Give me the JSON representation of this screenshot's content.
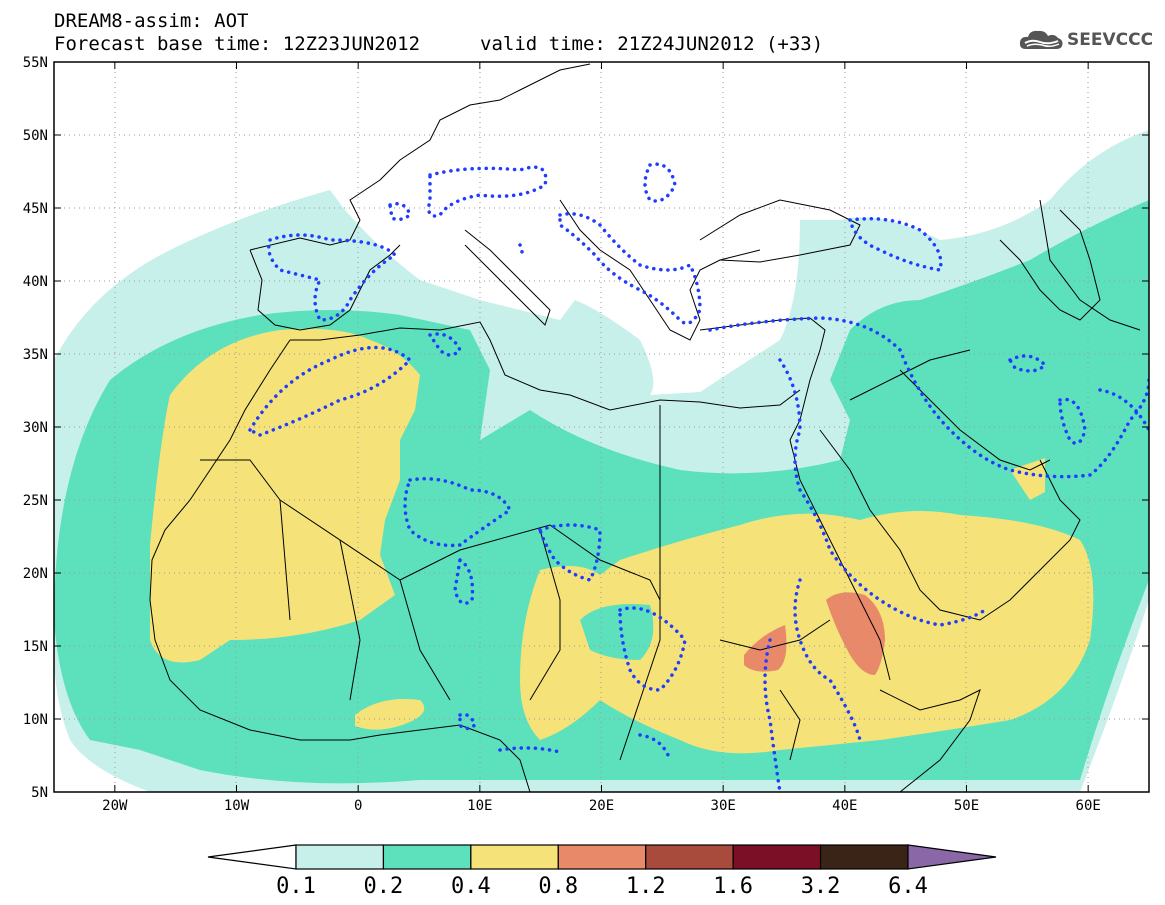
{
  "header": {
    "line1": "DREAM8-assim: AOT",
    "line2": "Forecast base time: 12Z23JUN2012",
    "valid": "valid time: 21Z24JUN2012 (+33)",
    "logo_text": "SEEVCCC"
  },
  "map": {
    "lon_range": [
      -25,
      65
    ],
    "lat_range": [
      5,
      55
    ],
    "lon_ticks": [
      {
        "value": -20,
        "label": "20W"
      },
      {
        "value": -10,
        "label": "10W"
      },
      {
        "value": 0,
        "label": "0"
      },
      {
        "value": 10,
        "label": "10E"
      },
      {
        "value": 20,
        "label": "20E"
      },
      {
        "value": 30,
        "label": "30E"
      },
      {
        "value": 40,
        "label": "40E"
      },
      {
        "value": 50,
        "label": "50E"
      },
      {
        "value": 60,
        "label": "60E"
      }
    ],
    "lat_ticks": [
      {
        "value": 55,
        "label": "55N"
      },
      {
        "value": 50,
        "label": "50N"
      },
      {
        "value": 45,
        "label": "45N"
      },
      {
        "value": 40,
        "label": "40N"
      },
      {
        "value": 35,
        "label": "35N"
      },
      {
        "value": 30,
        "label": "30N"
      },
      {
        "value": 25,
        "label": "25N"
      },
      {
        "value": 20,
        "label": "20N"
      },
      {
        "value": 15,
        "label": "15N"
      },
      {
        "value": 10,
        "label": "10N"
      },
      {
        "value": 5,
        "label": "5N"
      }
    ],
    "grid": "dotted"
  },
  "colorbar": {
    "boundaries": [
      "0.1",
      "0.2",
      "0.4",
      "0.8",
      "1.2",
      "1.6",
      "3.2",
      "6.4"
    ],
    "colors": [
      "#c8f0ea",
      "#5de0bc",
      "#f5e37a",
      "#e88a6a",
      "#a84a3c",
      "#7a0f25",
      "#3a2418"
    ],
    "under_color": "#ffffff",
    "over_color": "#8a68a8"
  },
  "colors": {
    "aot_0_1": "#c8f0ea",
    "aot_0_2": "#5de0bc",
    "aot_0_4": "#f5e37a",
    "aot_0_8": "#e88a6a",
    "aot_1_2": "#a84a3c",
    "contour": "#1f3cff",
    "border": "#000000"
  }
}
